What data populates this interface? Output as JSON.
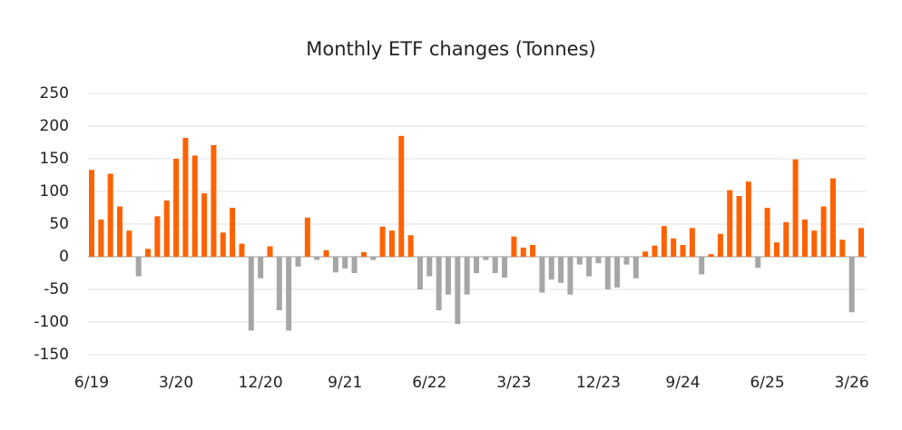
{
  "chart_data": {
    "type": "bar",
    "title": "Monthly ETF changes (Tonnes)",
    "categories": [
      "6/19",
      null,
      null,
      null,
      null,
      null,
      null,
      null,
      null,
      "3/20",
      null,
      null,
      null,
      null,
      null,
      null,
      null,
      null,
      "12/20",
      null,
      null,
      null,
      null,
      null,
      null,
      null,
      null,
      "9/21",
      null,
      null,
      null,
      null,
      null,
      null,
      null,
      null,
      "6/22",
      null,
      null,
      null,
      null,
      null,
      null,
      null,
      null,
      "3/23",
      null,
      null,
      null,
      null,
      null,
      null,
      null,
      null,
      "12/23",
      null,
      null,
      null,
      null,
      null,
      null,
      null,
      null,
      "9/24",
      null,
      null,
      null,
      null,
      null,
      null,
      null,
      null,
      "6/25",
      null,
      null,
      null,
      null,
      null,
      null,
      null,
      null,
      "3/26",
      null
    ],
    "values": [
      133,
      57,
      127,
      77,
      40,
      -30,
      12,
      62,
      86,
      150,
      182,
      155,
      97,
      171,
      37,
      75,
      20,
      -113,
      -33,
      16,
      -82,
      -113,
      -15,
      60,
      -5,
      10,
      -24,
      -18,
      -25,
      7,
      -5,
      46,
      40,
      185,
      33,
      -50,
      -30,
      -82,
      -58,
      -103,
      -58,
      -25,
      -5,
      -25,
      -32,
      31,
      14,
      18,
      -55,
      -35,
      -40,
      -58,
      -12,
      -30,
      -10,
      -50,
      -47,
      -12,
      -33,
      8,
      17,
      47,
      28,
      18,
      44,
      -27,
      4,
      35,
      102,
      93,
      115,
      -17,
      75,
      22,
      53,
      149,
      57,
      40,
      77,
      120,
      26,
      -85,
      44
    ],
    "positive_color": "#ff6200",
    "negative_color": "#a6a6a6",
    "ylim": [
      -150,
      250
    ],
    "yticks": [
      -150,
      -100,
      -50,
      0,
      50,
      100,
      150,
      200,
      250
    ],
    "grid": true
  }
}
